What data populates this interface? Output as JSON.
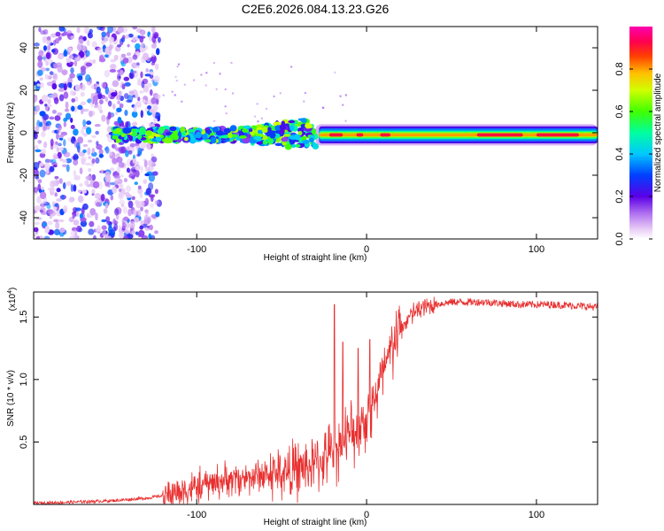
{
  "title": "C2E6.2026.084.13.23.G26",
  "chart_data": [
    {
      "type": "heatmap",
      "name": "spectrogram",
      "xlabel": "Height of straight line (km)",
      "ylabel": "Frequency (Hz)",
      "xlim": [
        -196,
        136
      ],
      "ylim": [
        -50,
        50
      ],
      "xticks": [
        -100,
        0,
        100
      ],
      "yticks": [
        -40,
        -20,
        0,
        20,
        40
      ],
      "xtick_labels": [
        "-100",
        "0",
        "100"
      ],
      "ytick_labels": [
        "-40",
        "-20",
        "0",
        "20",
        "40"
      ],
      "colorbar": {
        "label": "Normalized spectral amplitude",
        "range": [
          0,
          1
        ],
        "ticks": [
          0.0,
          0.2,
          0.4,
          0.6,
          0.8
        ],
        "tick_labels": [
          "0.0",
          "0.2",
          "0.4",
          "0.6",
          "0.8"
        ]
      },
      "features": [
        {
          "region": "scatter",
          "x_range": [
            -196,
            -122
          ],
          "freq_range": [
            -50,
            50
          ],
          "amplitude": 0.15
        },
        {
          "region": "band",
          "x_range": [
            -150,
            -30
          ],
          "freq_center": -1,
          "freq_width": 6,
          "amplitude": 0.35
        },
        {
          "region": "band",
          "x_range": [
            -30,
            136
          ],
          "freq_center": -1,
          "freq_width": 3,
          "amplitude": 0.85
        }
      ]
    },
    {
      "type": "line",
      "name": "snr",
      "xlabel": "Height of straight line (km)",
      "ylabel": "SNR (10 * v/v)",
      "scale_note": "(x10",
      "scale_exp": "4",
      "xlim": [
        -196,
        136
      ],
      "ylim": [
        0,
        1.7
      ],
      "xticks": [
        -100,
        0,
        100
      ],
      "yticks": [
        0.5,
        1.0,
        1.5
      ],
      "xtick_labels": [
        "-100",
        "0",
        "100"
      ],
      "ytick_labels": [
        "0.5",
        "1.0",
        "1.5"
      ],
      "color": "#e83030",
      "profile": {
        "x": [
          -196,
          -170,
          -150,
          -130,
          -120,
          -100,
          -90,
          -80,
          -70,
          -60,
          -50,
          -40,
          -30,
          -20,
          -10,
          0,
          5,
          10,
          15,
          20,
          25,
          30,
          40,
          50,
          70,
          90,
          110,
          136
        ],
        "y": [
          0.01,
          0.02,
          0.03,
          0.05,
          0.07,
          0.14,
          0.18,
          0.2,
          0.22,
          0.24,
          0.25,
          0.28,
          0.32,
          0.42,
          0.55,
          0.7,
          0.85,
          1.05,
          1.25,
          1.4,
          1.5,
          1.56,
          1.6,
          1.62,
          1.62,
          1.6,
          1.6,
          1.58
        ]
      },
      "noise": [
        {
          "x_range": [
            -196,
            -120
          ],
          "amp": 0.02
        },
        {
          "x_range": [
            -120,
            -60
          ],
          "amp": 0.18
        },
        {
          "x_range": [
            -60,
            -20
          ],
          "amp": 0.3
        },
        {
          "x_range": [
            -20,
            20
          ],
          "amp": 0.35
        },
        {
          "x_range": [
            20,
            40
          ],
          "amp": 0.12
        },
        {
          "x_range": [
            40,
            136
          ],
          "amp": 0.05
        }
      ],
      "spikes": [
        {
          "x": -19,
          "y": 1.6
        },
        {
          "x": -14,
          "y": 1.3
        },
        {
          "x": -5,
          "y": 1.25
        },
        {
          "x": 2,
          "y": 1.32
        }
      ]
    }
  ]
}
